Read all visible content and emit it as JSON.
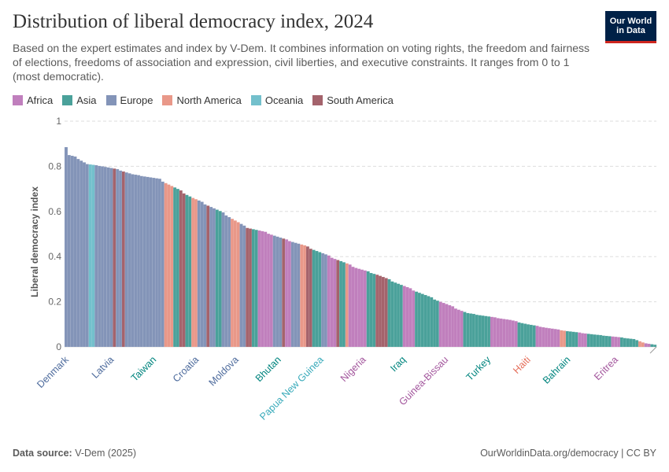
{
  "header": {
    "title": "Distribution of liberal democracy index, 2024",
    "subtitle": "Based on the expert estimates and index by V-Dem. It combines information on voting rights, the freedom and fairness of elections, freedoms of association and expression, civil liberties, and executive constraints. It ranges from 0 to 1 (most democratic).",
    "logo_line1": "Our World",
    "logo_line2": "in Data"
  },
  "legend": [
    {
      "label": "Africa",
      "key": "africa"
    },
    {
      "label": "Asia",
      "key": "asia"
    },
    {
      "label": "Europe",
      "key": "europe"
    },
    {
      "label": "North America",
      "key": "namerica"
    },
    {
      "label": "Oceania",
      "key": "oceania"
    },
    {
      "label": "South America",
      "key": "samerica"
    }
  ],
  "colors": {
    "africa": "#c07fbd",
    "asia": "#4aa19a",
    "europe": "#8394b8",
    "namerica": "#e99889",
    "oceania": "#73c0cc",
    "samerica": "#a4636c"
  },
  "label_colors": {
    "africa": "#a2559c",
    "asia": "#00847e",
    "europe": "#4c6a9c",
    "namerica": "#e56e5a",
    "oceania": "#38aaba",
    "samerica": "#883039"
  },
  "footer": {
    "source_label": "Data source:",
    "source_value": "V-Dem (2025)",
    "url": "OurWorldinData.org/democracy | CC BY"
  },
  "chart_data": {
    "type": "bar",
    "title": "Distribution of liberal democracy index, 2024",
    "xlabel": "",
    "ylabel": "Liberal democracy index",
    "ylim": [
      0,
      1
    ],
    "yticks": [
      0,
      0.2,
      0.4,
      0.6,
      0.8,
      1
    ],
    "ytick_labels": [
      "0",
      "0.2",
      "0.4",
      "0.6",
      "0.8",
      "1"
    ],
    "grid": true,
    "anchors": [
      [
        0,
        0.885
      ],
      [
        1,
        0.85
      ],
      [
        4,
        0.84
      ],
      [
        8,
        0.81
      ],
      [
        14,
        0.8
      ],
      [
        20,
        0.785
      ],
      [
        25,
        0.765
      ],
      [
        35,
        0.745
      ],
      [
        42,
        0.7
      ],
      [
        48,
        0.66
      ],
      [
        55,
        0.62
      ],
      [
        60,
        0.59
      ],
      [
        68,
        0.53
      ],
      [
        75,
        0.51
      ],
      [
        82,
        0.48
      ],
      [
        90,
        0.45
      ],
      [
        96,
        0.42
      ],
      [
        102,
        0.39
      ],
      [
        110,
        0.35
      ],
      [
        118,
        0.32
      ],
      [
        124,
        0.29
      ],
      [
        132,
        0.25
      ],
      [
        140,
        0.21
      ],
      [
        146,
        0.18
      ],
      [
        152,
        0.15
      ],
      [
        160,
        0.135
      ],
      [
        168,
        0.12
      ],
      [
        175,
        0.1
      ],
      [
        182,
        0.085
      ],
      [
        190,
        0.07
      ],
      [
        200,
        0.055
      ],
      [
        208,
        0.045
      ],
      [
        215,
        0.035
      ],
      [
        218,
        0.02
      ],
      [
        223,
        0.01
      ]
    ],
    "segments": [
      [
        "europe",
        0,
        7
      ],
      [
        "oceania",
        8,
        9
      ],
      [
        "europe",
        10,
        15
      ],
      [
        "samerica",
        16,
        16
      ],
      [
        "europe",
        17,
        18
      ],
      [
        "samerica",
        19,
        19
      ],
      [
        "europe",
        20,
        32
      ],
      [
        "namerica",
        33,
        35
      ],
      [
        "asia",
        36,
        37
      ],
      [
        "samerica",
        38,
        39
      ],
      [
        "asia",
        40,
        41
      ],
      [
        "namerica",
        42,
        43
      ],
      [
        "europe",
        44,
        46
      ],
      [
        "samerica",
        47,
        47
      ],
      [
        "europe",
        48,
        49
      ],
      [
        "asia",
        50,
        51
      ],
      [
        "europe",
        52,
        54
      ],
      [
        "namerica",
        55,
        57
      ],
      [
        "europe",
        58,
        59
      ],
      [
        "samerica",
        60,
        61
      ],
      [
        "asia",
        62,
        63
      ],
      [
        "africa",
        64,
        68
      ],
      [
        "europe",
        69,
        71
      ],
      [
        "samerica",
        72,
        72
      ],
      [
        "africa",
        73,
        74
      ],
      [
        "europe",
        75,
        77
      ],
      [
        "namerica",
        78,
        79
      ],
      [
        "samerica",
        80,
        81
      ],
      [
        "asia",
        82,
        84
      ],
      [
        "europe",
        85,
        86
      ],
      [
        "africa",
        87,
        89
      ],
      [
        "samerica",
        90,
        90
      ],
      [
        "asia",
        91,
        92
      ],
      [
        "namerica",
        93,
        93
      ],
      [
        "africa",
        94,
        99
      ],
      [
        "asia",
        100,
        102
      ],
      [
        "samerica",
        103,
        106
      ],
      [
        "asia",
        107,
        111
      ],
      [
        "africa",
        112,
        115
      ],
      [
        "asia",
        116,
        123
      ],
      [
        "africa",
        124,
        131
      ],
      [
        "asia",
        132,
        140
      ],
      [
        "africa",
        141,
        149
      ],
      [
        "asia",
        150,
        155
      ],
      [
        "africa",
        156,
        163
      ],
      [
        "namerica",
        164,
        165
      ],
      [
        "asia",
        166,
        169
      ],
      [
        "africa",
        170,
        172
      ],
      [
        "asia",
        173,
        180
      ],
      [
        "africa",
        181,
        183
      ],
      [
        "asia",
        184,
        189
      ],
      [
        "namerica",
        190,
        191
      ],
      [
        "africa",
        192,
        193
      ],
      [
        "asia",
        194,
        195
      ]
    ],
    "n_bars": 196,
    "labeled_countries": [
      {
        "name": "Denmark",
        "region": "europe",
        "index": 0
      },
      {
        "name": "Latvia",
        "region": "europe",
        "index": 17
      },
      {
        "name": "Taiwan",
        "region": "asia",
        "index": 33
      },
      {
        "name": "Croatia",
        "region": "europe",
        "index": 49
      },
      {
        "name": "Moldova",
        "region": "europe",
        "index": 64
      },
      {
        "name": "Bhutan",
        "region": "asia",
        "index": 80
      },
      {
        "name": "Papua New Guinea",
        "region": "oceania",
        "index": 96
      },
      {
        "name": "Nigeria",
        "region": "africa",
        "index": 112
      },
      {
        "name": "Iraq",
        "region": "asia",
        "index": 127
      },
      {
        "name": "Guinea-Bissau",
        "region": "africa",
        "index": 143
      },
      {
        "name": "Turkey",
        "region": "asia",
        "index": 159
      },
      {
        "name": "Haiti",
        "region": "namerica",
        "index": 174
      },
      {
        "name": "Bahrain",
        "region": "asia",
        "index": 189
      },
      {
        "name": "Eritrea",
        "region": "africa",
        "index": 207
      }
    ]
  }
}
